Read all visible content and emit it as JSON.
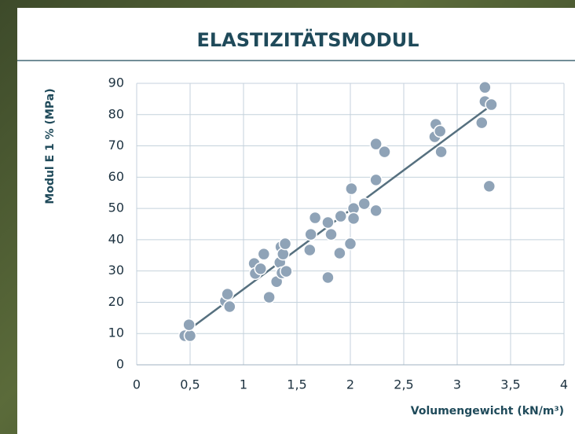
{
  "chart_data": {
    "type": "scatter",
    "title": "ELASTIZITÄTSMODUL",
    "x_label": "Volumengewicht (kN/m³)",
    "y_label": "Modul E 1 % (MPa)",
    "series": [
      {
        "color": "#8fa3b7",
        "x": [
          0.45,
          0.5,
          0.49,
          0.83,
          0.85,
          0.87,
          1.1,
          1.11,
          1.16,
          1.19,
          1.24,
          1.31,
          1.34,
          1.35,
          1.37,
          1.36,
          1.4,
          1.39,
          1.62,
          1.63,
          1.67,
          1.79,
          1.79,
          1.82,
          1.9,
          1.91,
          2.0,
          2.01,
          2.03,
          2.03,
          2.13,
          2.24,
          2.24,
          2.24,
          2.32,
          2.79,
          2.8,
          2.84,
          2.85,
          3.23,
          3.26,
          3.26,
          3.32,
          3.3
        ],
        "values": [
          9.3,
          9.3,
          12.8,
          20.4,
          22.6,
          18.6,
          32.4,
          29.2,
          30.7,
          35.4,
          21.6,
          26.6,
          32.7,
          37.7,
          35.4,
          29.4,
          29.9,
          38.7,
          36.7,
          41.7,
          47,
          27.9,
          45.5,
          41.7,
          35.7,
          47.5,
          38.7,
          56.3,
          50,
          46.8,
          51.5,
          70.6,
          59.1,
          49.3,
          68.1,
          72.9,
          76.9,
          74.7,
          68.1,
          77.4,
          88.7,
          84.2,
          83.2,
          57.1
        ]
      }
    ],
    "trendline": {
      "color": "#56707f",
      "x": [
        0.5,
        3.28
      ],
      "values": [
        11.5,
        82
      ]
    },
    "xlim": [
      0,
      4
    ],
    "ylim": [
      0,
      90
    ],
    "xticks": [
      0,
      {
        "value": 0.5,
        "label": "0,5"
      },
      1,
      {
        "value": 1.5,
        "label": "1,5"
      },
      2,
      {
        "value": 2.5,
        "label": "2,5"
      },
      3,
      {
        "value": 3.5,
        "label": "3,5"
      },
      4
    ],
    "yticks": [
      0,
      10,
      20,
      30,
      40,
      50,
      60,
      70,
      80,
      90
    ],
    "grid": true
  }
}
